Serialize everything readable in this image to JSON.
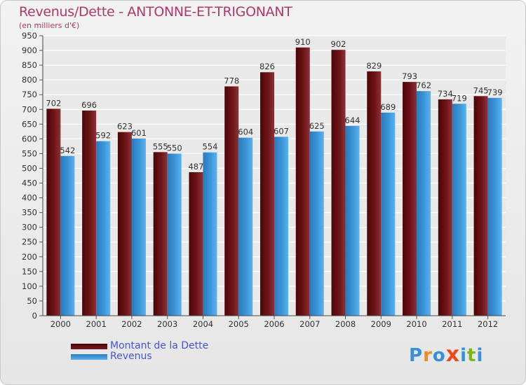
{
  "header": {
    "title": "Revenus/Dette - ANTONNE-ET-TRIGONANT",
    "subtitle": "(en milliers d'€)"
  },
  "colors": {
    "dette": "#6b0f16",
    "revenus": "#3d96d9",
    "title": "#b0386a",
    "legend_text": "#4455dd"
  },
  "logo": {
    "text": "Proxiti",
    "letters": [
      "P",
      "r",
      "o",
      "x",
      "i",
      "t",
      "i"
    ],
    "letter_colors": [
      "#3a8fd8",
      "#f08a1c",
      "#3a8fd8",
      "#e84c1c",
      "#3a8fd8",
      "#7ab520",
      "#3a8fd8"
    ]
  },
  "chart_data": {
    "type": "bar",
    "categories": [
      "2000",
      "2001",
      "2002",
      "2003",
      "2004",
      "2005",
      "2006",
      "2007",
      "2008",
      "2009",
      "2010",
      "2011",
      "2012"
    ],
    "series": [
      {
        "name": "Montant de la Dette",
        "values": [
          702,
          696,
          623,
          555,
          487,
          778,
          826,
          910,
          902,
          829,
          793,
          734,
          745
        ]
      },
      {
        "name": "Revenus",
        "values": [
          542,
          592,
          601,
          550,
          554,
          604,
          607,
          625,
          644,
          689,
          762,
          719,
          739
        ]
      }
    ],
    "y_ticks": [
      0,
      50,
      100,
      150,
      200,
      250,
      300,
      350,
      400,
      450,
      500,
      550,
      600,
      650,
      700,
      750,
      800,
      850,
      900,
      950
    ],
    "ylim": [
      0,
      950
    ],
    "grid": true,
    "legend_position": "bottom-left"
  }
}
